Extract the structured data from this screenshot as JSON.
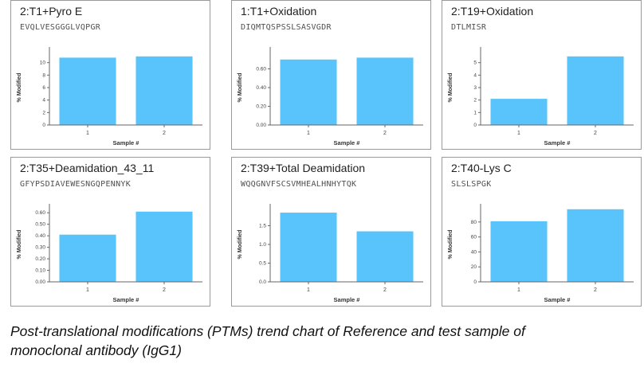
{
  "caption": {
    "line1": "Post-translational modifications (PTMs) trend chart of Reference and test sample of",
    "line2": "monoclonal antibody (IgG1)"
  },
  "colors": {
    "bar": "#59c4fb",
    "axis": "#666666",
    "border": "#9a9a9a"
  },
  "chart_data": [
    {
      "type": "bar",
      "title": "2:T1+Pyro E",
      "sequence": "EVQLVESGGGLVQPGR",
      "categories": [
        "1",
        "2"
      ],
      "values": [
        10.8,
        11.0
      ],
      "xlabel": "Sample #",
      "ylabel": "% Modified",
      "ylim": [
        0,
        12
      ],
      "yticks": [
        "0",
        "2",
        "4",
        "6",
        "8",
        "10"
      ],
      "ytick_values": [
        0,
        2,
        4,
        6,
        8,
        10
      ]
    },
    {
      "type": "bar",
      "title": "1:T1+Oxidation",
      "sequence": "DIQMTQSPSSLSASVGDR",
      "categories": [
        "1",
        "2"
      ],
      "values": [
        0.7,
        0.72
      ],
      "xlabel": "Sample #",
      "ylabel": "% Modified",
      "ylim": [
        0,
        0.8
      ],
      "yticks": [
        "0.00",
        "0.20",
        "0.40",
        "0.60"
      ],
      "ytick_values": [
        0,
        0.2,
        0.4,
        0.6
      ]
    },
    {
      "type": "bar",
      "title": "2:T19+Oxidation",
      "sequence": "DTLMISR",
      "categories": [
        "1",
        "2"
      ],
      "values": [
        2.1,
        5.5
      ],
      "xlabel": "Sample #",
      "ylabel": "% Modified",
      "ylim": [
        0,
        6
      ],
      "yticks": [
        "0",
        "1",
        "2",
        "3",
        "4",
        "5"
      ],
      "ytick_values": [
        0,
        1,
        2,
        3,
        4,
        5
      ]
    },
    {
      "type": "bar",
      "title": "2:T35+Deamidation_43_11",
      "sequence": "GFYPSDIAVEWESNGQPENNYK",
      "categories": [
        "1",
        "2"
      ],
      "values": [
        0.41,
        0.61
      ],
      "xlabel": "Sample #",
      "ylabel": "% Modified",
      "ylim": [
        0,
        0.65
      ],
      "yticks": [
        "0.00",
        "0.10",
        "0.20",
        "0.30",
        "0.40",
        "0.50",
        "0.60"
      ],
      "ytick_values": [
        0,
        0.1,
        0.2,
        0.3,
        0.4,
        0.5,
        0.6
      ]
    },
    {
      "type": "bar",
      "title": "2:T39+Total Deamidation",
      "sequence": "WQQGNVFSCSVMHEALHNHYTQK",
      "categories": [
        "1",
        "2"
      ],
      "values": [
        1.85,
        1.35
      ],
      "xlabel": "Sample #",
      "ylabel": "% Modified",
      "ylim": [
        0,
        2.0
      ],
      "yticks": [
        "0.0",
        "0.5",
        "1.0",
        "1.5"
      ],
      "ytick_values": [
        0,
        0.5,
        1.0,
        1.5
      ]
    },
    {
      "type": "bar",
      "title": "2:T40-Lys C",
      "sequence": "SLSLSPGK",
      "categories": [
        "1",
        "2"
      ],
      "values": [
        81,
        97
      ],
      "xlabel": "Sample #",
      "ylabel": "% Modified",
      "ylim": [
        0,
        100
      ],
      "yticks": [
        "0",
        "20",
        "40",
        "60",
        "80"
      ],
      "ytick_values": [
        0,
        20,
        40,
        60,
        80
      ]
    }
  ]
}
